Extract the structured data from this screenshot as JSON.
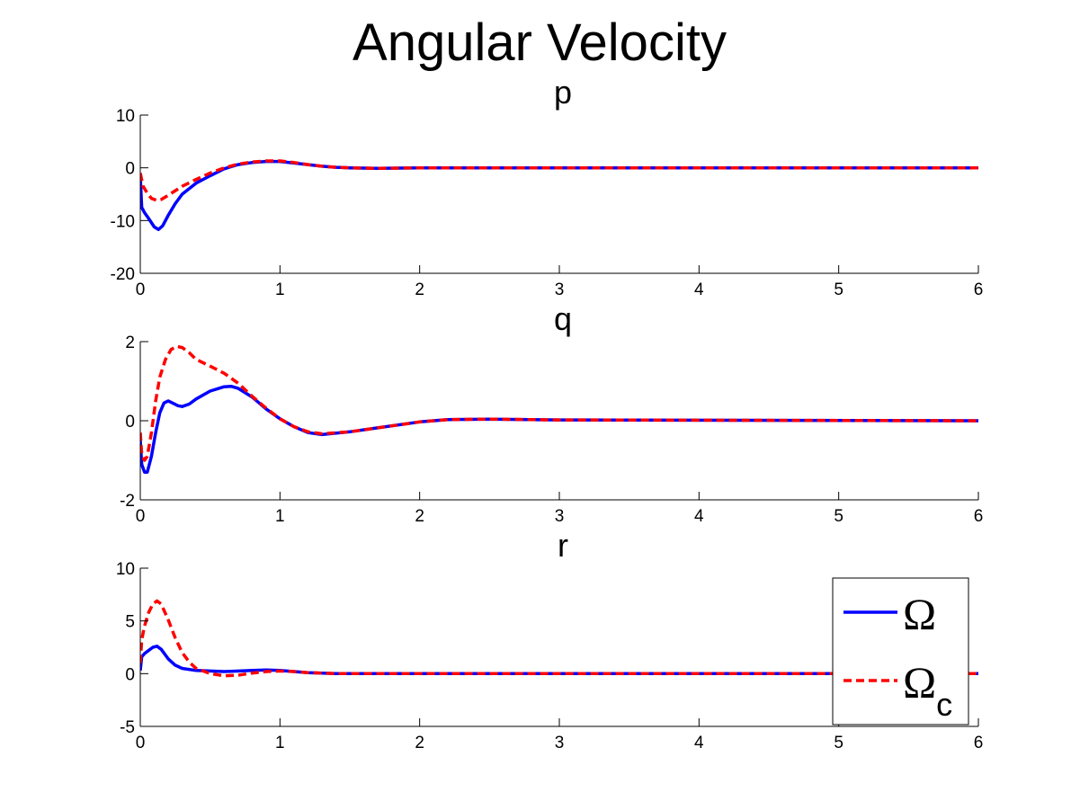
{
  "figure": {
    "title": "Angular Velocity",
    "background": "#ffffff",
    "line_colors": {
      "measured": "#0000ff",
      "commanded": "#ff0000"
    }
  },
  "legend": {
    "placement": "inside bottom-right of third subplot",
    "items": [
      {
        "symbol": "Ω",
        "subscript": "",
        "style": "solid",
        "color": "#0000ff"
      },
      {
        "symbol": "Ω",
        "subscript": "c",
        "style": "dashed",
        "color": "#ff0000"
      }
    ]
  },
  "chart_data": [
    {
      "type": "line",
      "title": "p",
      "xlabel": "",
      "ylabel": "",
      "xlim": [
        0,
        6
      ],
      "ylim": [
        -20,
        10
      ],
      "xticks": [
        0,
        1,
        2,
        3,
        4,
        5,
        6
      ],
      "yticks": [
        -20,
        -10,
        0,
        10
      ],
      "grid": false,
      "series": [
        {
          "name": "Ω",
          "style": "solid",
          "color": "#0000ff",
          "x": [
            0,
            0.01,
            0.03,
            0.06,
            0.1,
            0.13,
            0.16,
            0.2,
            0.25,
            0.3,
            0.4,
            0.5,
            0.6,
            0.7,
            0.8,
            0.9,
            1.0,
            1.1,
            1.2,
            1.3,
            1.4,
            1.5,
            1.7,
            2.0,
            3.0,
            6.0
          ],
          "y": [
            -1.5,
            -7.5,
            -8.5,
            -9.6,
            -11.2,
            -11.7,
            -11.0,
            -9.0,
            -6.8,
            -5.0,
            -2.9,
            -1.5,
            -0.2,
            0.6,
            1.0,
            1.2,
            1.2,
            0.9,
            0.6,
            0.3,
            0.1,
            0.0,
            -0.1,
            0.0,
            0.0,
            0.0
          ]
        },
        {
          "name": "Ω",
          "subscript": "c",
          "style": "dashed",
          "color": "#ff0000",
          "x": [
            0,
            0.02,
            0.05,
            0.08,
            0.12,
            0.15,
            0.2,
            0.3,
            0.4,
            0.5,
            0.6,
            0.7,
            0.8,
            0.9,
            1.0,
            1.1,
            1.2,
            1.3,
            1.4,
            1.5,
            1.7,
            2.0,
            3.0,
            6.0
          ],
          "y": [
            -1.0,
            -3.5,
            -4.8,
            -5.8,
            -6.2,
            -6.0,
            -5.2,
            -3.5,
            -2.2,
            -1.0,
            0.0,
            0.7,
            1.1,
            1.3,
            1.3,
            1.0,
            0.6,
            0.3,
            0.1,
            0.0,
            -0.1,
            0.0,
            0.0,
            0.0
          ]
        }
      ]
    },
    {
      "type": "line",
      "title": "q",
      "xlabel": "",
      "ylabel": "",
      "xlim": [
        0,
        6
      ],
      "ylim": [
        -2,
        2
      ],
      "xticks": [
        0,
        1,
        2,
        3,
        4,
        5,
        6
      ],
      "yticks": [
        -2,
        0,
        2
      ],
      "grid": false,
      "series": [
        {
          "name": "Ω",
          "style": "solid",
          "color": "#0000ff",
          "x": [
            0,
            0.01,
            0.03,
            0.05,
            0.08,
            0.11,
            0.14,
            0.17,
            0.2,
            0.23,
            0.27,
            0.3,
            0.35,
            0.4,
            0.5,
            0.6,
            0.65,
            0.7,
            0.8,
            0.9,
            1.0,
            1.1,
            1.2,
            1.3,
            1.5,
            1.7,
            2.0,
            2.2,
            2.5,
            3.0,
            6.0
          ],
          "y": [
            -0.5,
            -1.1,
            -1.3,
            -1.3,
            -0.9,
            -0.3,
            0.2,
            0.45,
            0.5,
            0.45,
            0.38,
            0.36,
            0.42,
            0.55,
            0.75,
            0.86,
            0.87,
            0.82,
            0.6,
            0.3,
            0.05,
            -0.15,
            -0.3,
            -0.35,
            -0.28,
            -0.18,
            -0.03,
            0.03,
            0.04,
            0.02,
            0.0
          ]
        },
        {
          "name": "Ω",
          "subscript": "c",
          "style": "dashed",
          "color": "#ff0000",
          "x": [
            0,
            0.01,
            0.03,
            0.05,
            0.08,
            0.11,
            0.14,
            0.18,
            0.22,
            0.26,
            0.3,
            0.35,
            0.4,
            0.5,
            0.6,
            0.7,
            0.8,
            0.9,
            1.0,
            1.1,
            1.2,
            1.3,
            1.5,
            1.7,
            2.0,
            2.2,
            2.5,
            3.0,
            6.0
          ],
          "y": [
            -0.3,
            -0.85,
            -1.0,
            -0.9,
            -0.3,
            0.5,
            1.1,
            1.55,
            1.8,
            1.88,
            1.85,
            1.72,
            1.55,
            1.38,
            1.2,
            0.95,
            0.62,
            0.32,
            0.05,
            -0.15,
            -0.28,
            -0.33,
            -0.28,
            -0.18,
            -0.03,
            0.03,
            0.04,
            0.02,
            0.0
          ]
        }
      ]
    },
    {
      "type": "line",
      "title": "r",
      "xlabel": "",
      "ylabel": "",
      "xlim": [
        0,
        6
      ],
      "ylim": [
        -5,
        10
      ],
      "xticks": [
        0,
        1,
        2,
        3,
        4,
        5,
        6
      ],
      "yticks": [
        -5,
        0,
        5,
        10
      ],
      "grid": false,
      "series": [
        {
          "name": "Ω",
          "style": "solid",
          "color": "#0000ff",
          "x": [
            0,
            0.01,
            0.03,
            0.06,
            0.09,
            0.12,
            0.15,
            0.2,
            0.25,
            0.3,
            0.4,
            0.5,
            0.6,
            0.8,
            0.9,
            1.0,
            1.1,
            1.2,
            1.4,
            2.0,
            6.0
          ],
          "y": [
            0.3,
            1.6,
            1.9,
            2.2,
            2.5,
            2.6,
            2.3,
            1.4,
            0.8,
            0.5,
            0.3,
            0.25,
            0.2,
            0.3,
            0.35,
            0.3,
            0.2,
            0.1,
            0.0,
            0.0,
            0.0
          ]
        },
        {
          "name": "Ω",
          "subscript": "c",
          "style": "dashed",
          "color": "#ff0000",
          "x": [
            0,
            0.01,
            0.03,
            0.06,
            0.09,
            0.12,
            0.15,
            0.2,
            0.25,
            0.3,
            0.35,
            0.4,
            0.5,
            0.6,
            0.7,
            0.8,
            0.9,
            1.0,
            1.1,
            1.2,
            1.4,
            2.0,
            6.0
          ],
          "y": [
            1.0,
            3.2,
            4.5,
            5.8,
            6.6,
            6.9,
            6.6,
            5.1,
            3.4,
            2.0,
            1.1,
            0.5,
            0.0,
            -0.2,
            -0.15,
            0.05,
            0.2,
            0.25,
            0.2,
            0.1,
            0.0,
            0.0,
            0.0
          ]
        }
      ]
    }
  ]
}
